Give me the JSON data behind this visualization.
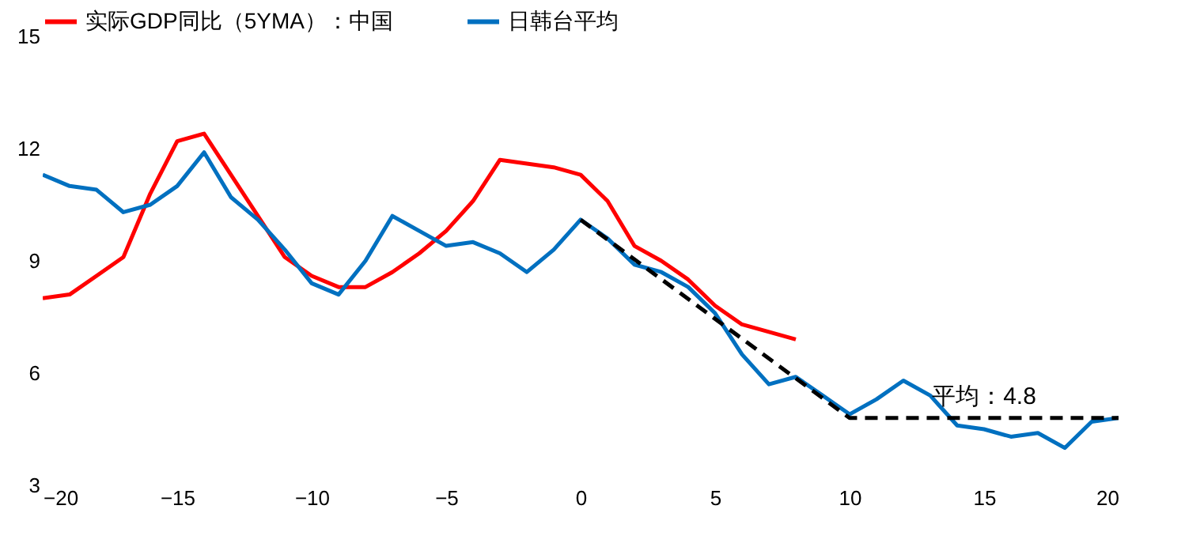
{
  "chart_data": {
    "type": "line",
    "xlim": [
      -20,
      20
    ],
    "xticks": [
      -20,
      -15,
      -10,
      -5,
      0,
      5,
      10,
      15,
      20
    ],
    "ylim": [
      3,
      15
    ],
    "yticks": [
      3,
      6,
      9,
      12,
      15
    ],
    "legend": "top",
    "grid": false,
    "series": [
      {
        "name": "实际GDP同比（5YMA）：中国",
        "color": "#ff0000",
        "x": [
          -20,
          -19,
          -18,
          -17,
          -16,
          -15,
          -14,
          -13,
          -12,
          -11,
          -10,
          -9,
          -8,
          -7,
          -6,
          -5,
          -4,
          -3,
          -2,
          -1,
          0,
          1,
          2,
          3,
          4,
          5,
          6,
          7,
          8
        ],
        "values": [
          8.0,
          8.1,
          8.6,
          9.1,
          10.8,
          12.2,
          12.4,
          11.3,
          10.2,
          9.1,
          8.6,
          8.3,
          8.3,
          8.7,
          9.2,
          9.8,
          10.6,
          11.7,
          11.6,
          11.5,
          11.3,
          10.6,
          9.4,
          9.0,
          8.5,
          7.8,
          7.3,
          7.1,
          6.9
        ]
      },
      {
        "name": "日韩台平均",
        "color": "#0070c0",
        "x": [
          -20,
          -19,
          -18,
          -17,
          -16,
          -15,
          -14,
          -13,
          -12,
          -11,
          -10,
          -9,
          -8,
          -7,
          -6,
          -5,
          -4,
          -3,
          -2,
          -1,
          0,
          1,
          2,
          3,
          4,
          5,
          6,
          7,
          8,
          9,
          10,
          11,
          12,
          13,
          14,
          15,
          16,
          17,
          18,
          19,
          20
        ],
        "values": [
          11.3,
          11.0,
          10.9,
          10.3,
          10.5,
          11.0,
          11.9,
          10.7,
          10.1,
          9.3,
          8.4,
          8.1,
          9.0,
          10.2,
          9.8,
          9.4,
          9.5,
          9.2,
          8.7,
          9.3,
          10.1,
          9.6,
          8.9,
          8.7,
          8.3,
          7.6,
          6.5,
          5.7,
          5.9,
          5.4,
          4.9,
          5.3,
          5.8,
          5.4,
          4.6,
          4.5,
          4.3,
          4.4,
          4.0,
          4.7,
          4.8
        ]
      },
      {
        "type": "line",
        "color": "#000000",
        "line_style": "dashed",
        "x": [
          0,
          10,
          20
        ],
        "values": [
          10.1,
          4.8,
          4.8
        ]
      }
    ],
    "annotations": [
      {
        "text": "平均：4.8",
        "x": 15,
        "y": 4.8
      }
    ]
  }
}
